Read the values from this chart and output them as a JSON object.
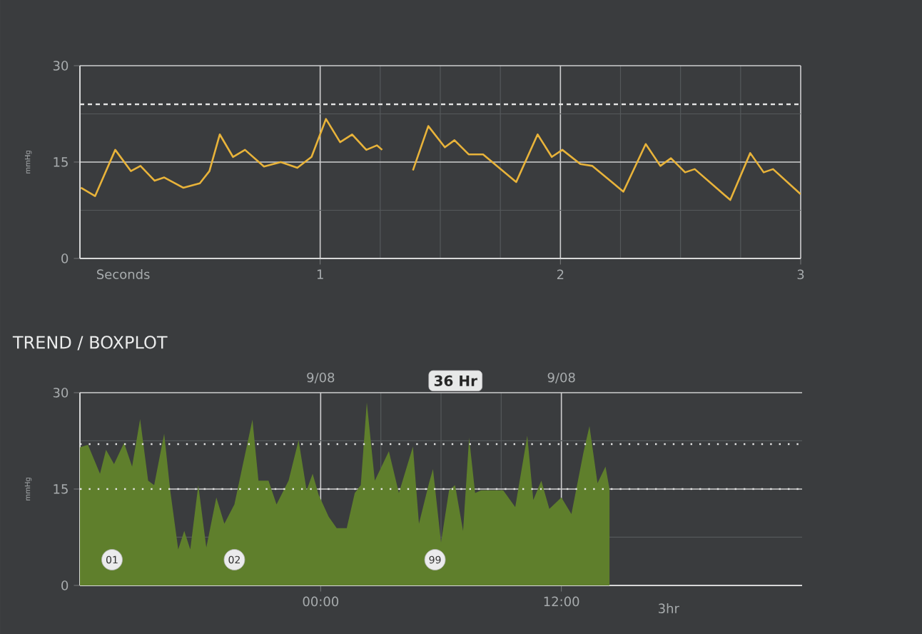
{
  "chart_data": [
    {
      "type": "line",
      "xlabel": "Seconds",
      "ylabel": "mmHg",
      "xlim": [
        0,
        3
      ],
      "ylim": [
        0,
        30
      ],
      "xticks": [
        1,
        2,
        3
      ],
      "yticks": [
        0,
        15,
        30
      ],
      "grid": true,
      "x": [
        0.004,
        0.063,
        0.147,
        0.212,
        0.252,
        0.311,
        0.351,
        0.43,
        0.499,
        0.539,
        0.582,
        0.637,
        0.687,
        0.766,
        0.836,
        0.905,
        0.964,
        1.024,
        1.083,
        1.133,
        1.192,
        1.236,
        1.258,
        1.32,
        1.386,
        1.45,
        1.519,
        1.559,
        1.618,
        1.678,
        1.816,
        1.905,
        1.964,
        2.008,
        2.083,
        2.133,
        2.262,
        2.355,
        2.416,
        2.46,
        2.519,
        2.559,
        2.707,
        2.79,
        2.846,
        2.885,
        3.0
      ],
      "series": [
        {
          "color": "#e8b33a",
          "values": [
            11.0,
            9.7,
            16.9,
            13.6,
            14.4,
            12.1,
            12.6,
            11.0,
            11.7,
            13.6,
            19.3,
            15.8,
            16.9,
            14.3,
            15.0,
            14.1,
            15.8,
            21.7,
            18.1,
            19.3,
            16.9,
            17.6,
            16.9,
            null,
            13.7,
            20.6,
            17.3,
            18.4,
            16.2,
            16.2,
            11.9,
            19.3,
            15.8,
            16.9,
            14.7,
            14.4,
            10.4,
            17.8,
            14.4,
            15.6,
            13.4,
            13.9,
            9.1,
            16.4,
            13.4,
            13.9,
            10.0
          ]
        }
      ],
      "ref_lines": [
        {
          "axis": "y",
          "value": 24,
          "line_style": "dashed",
          "color": "#e6e6e6"
        }
      ]
    },
    {
      "type": "area",
      "title": "TREND / BOXPLOT",
      "ylabel": "mmHg",
      "xlim": [
        -12,
        24
      ],
      "ylim": [
        0,
        30
      ],
      "xticks": [
        {
          "value": 0,
          "label": "00:00"
        },
        {
          "value": 12,
          "label": "12:00"
        }
      ],
      "yticks": [
        0,
        15,
        30
      ],
      "grid": true,
      "x": [
        -12,
        -11.6,
        -11.0,
        -10.7,
        -10.3,
        -9.8,
        -9.4,
        -9.0,
        -8.6,
        -8.3,
        -7.8,
        -7.5,
        -7.1,
        -6.8,
        -6.5,
        -6.1,
        -5.7,
        -5.2,
        -4.8,
        -4.3,
        -3.9,
        -3.4,
        -3.1,
        -2.6,
        -2.2,
        -1.6,
        -1.1,
        -0.7,
        -0.4,
        -0.1,
        0.4,
        0.8,
        1.3,
        1.7,
        2.0,
        2.3,
        2.7,
        3.4,
        3.9,
        4.6,
        4.9,
        5.4,
        5.6,
        6.0,
        6.4,
        6.7,
        7.1,
        7.4,
        7.7,
        8.0,
        9.1,
        9.7,
        10.3,
        10.6,
        11.0,
        11.4,
        12.0,
        12.5,
        13.1,
        13.4,
        13.8,
        14.2,
        14.4
      ],
      "series": [
        {
          "color": "#5f7f2c",
          "values": [
            21.5,
            21.9,
            17.4,
            21.1,
            18.9,
            22.2,
            18.5,
            25.9,
            16.3,
            15.6,
            23.6,
            14.8,
            5.6,
            8.5,
            5.6,
            15.6,
            5.9,
            13.7,
            9.6,
            12.6,
            18.5,
            25.8,
            16.3,
            16.3,
            12.6,
            16.3,
            22.6,
            14.8,
            17.4,
            14.1,
            10.7,
            8.9,
            8.9,
            14.4,
            15.6,
            28.5,
            16.3,
            20.9,
            14.4,
            21.6,
            9.6,
            15.9,
            18.1,
            6.7,
            14.8,
            15.6,
            8.5,
            23.0,
            14.4,
            14.8,
            14.8,
            12.2,
            23.3,
            13.3,
            16.3,
            11.9,
            13.7,
            11.1,
            20.7,
            24.8,
            15.9,
            18.5,
            15.0
          ]
        }
      ],
      "ref_lines": [
        {
          "axis": "y",
          "value": 15,
          "line_style": "dotted",
          "color": "#e6e6e6"
        },
        {
          "axis": "y",
          "value": 22,
          "line_style": "dotted",
          "color": "#e6e6e6"
        }
      ],
      "annotations": [
        "36 Hr",
        "3hr",
        "9/08",
        "9/08",
        {
          "text": "01",
          "x": -10.4,
          "y": 4
        },
        {
          "text": "02",
          "x": -4.3,
          "y": 4
        },
        {
          "text": "99",
          "x": 5.7,
          "y": 4
        }
      ]
    }
  ]
}
